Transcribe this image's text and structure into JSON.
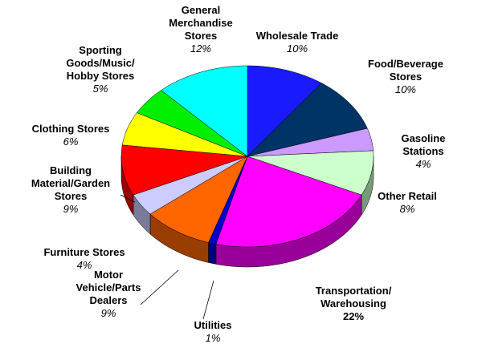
{
  "chart_data": {
    "type": "pie",
    "categories": [
      "Wholesale Trade",
      "Food/Beverage\nStores",
      "Gasoline Stations",
      "Other Retail",
      "Transportation/\nWarehousing",
      "Utilities",
      "Motor\nVehicle/Parts\nDealers",
      "Furniture Stores",
      "Building\nMaterial/Garden\nStores",
      "Clothing Stores",
      "Sporting\nGoods/Music/\nHobby Stores",
      "General\nMerchandise\nStores"
    ],
    "values": [
      10,
      10,
      4,
      8,
      22,
      1,
      9,
      4,
      9,
      6,
      5,
      12
    ],
    "value_labels": [
      "10%",
      "10%",
      "4%",
      "8%",
      "22%",
      "1%",
      "9%",
      "4%",
      "9%",
      "6%",
      "5%",
      "12%"
    ],
    "colors": [
      "#1a1aff",
      "#003366",
      "#cc99ff",
      "#ccffcc",
      "#ff00ff",
      "#0000cc",
      "#ff6600",
      "#ccccff",
      "#ff0000",
      "#ffff00",
      "#00ee00",
      "#00ffff"
    ]
  }
}
